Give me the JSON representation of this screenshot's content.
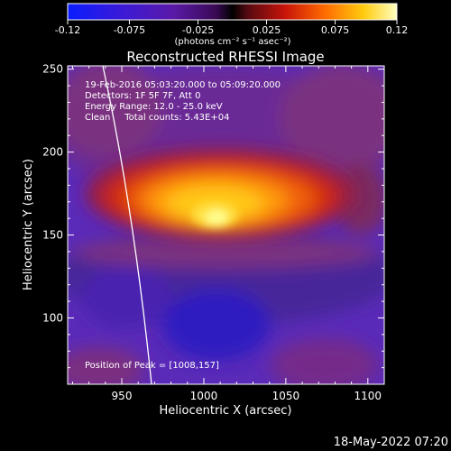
{
  "chart_data": {
    "type": "heatmap",
    "title": "Reconstructed RHESSI Image",
    "xlabel": "Heliocentric X (arcsec)",
    "ylabel": "Heliocentric Y (arcsec)",
    "xlim": [
      917,
      1110
    ],
    "ylim": [
      60,
      252
    ],
    "x_ticks": [
      950,
      1000,
      1050,
      1100
    ],
    "y_ticks": [
      100,
      150,
      200,
      250
    ],
    "colorbar": {
      "range": [
        -0.12,
        0.12
      ],
      "ticks": [
        "-0.12",
        "-0.075",
        "-0.025",
        "0.025",
        "0.075",
        "0.12"
      ],
      "units_label": "(photons cm⁻² s⁻¹ asec⁻²)"
    },
    "annotations": [
      "19-Feb-2016 05:03:20.000 to 05:09:20.000",
      "Detectors: 1F 5F 7F, Att 0",
      "Energy Range: 12.0 - 25.0 keV",
      "Clean     Total counts: 5.43E+04"
    ],
    "peak_label": "Position of Peak = [1008,157]",
    "peak": {
      "x": 1008,
      "y": 157
    },
    "timestamp": "18-May-2022 07:20",
    "grid": false
  }
}
